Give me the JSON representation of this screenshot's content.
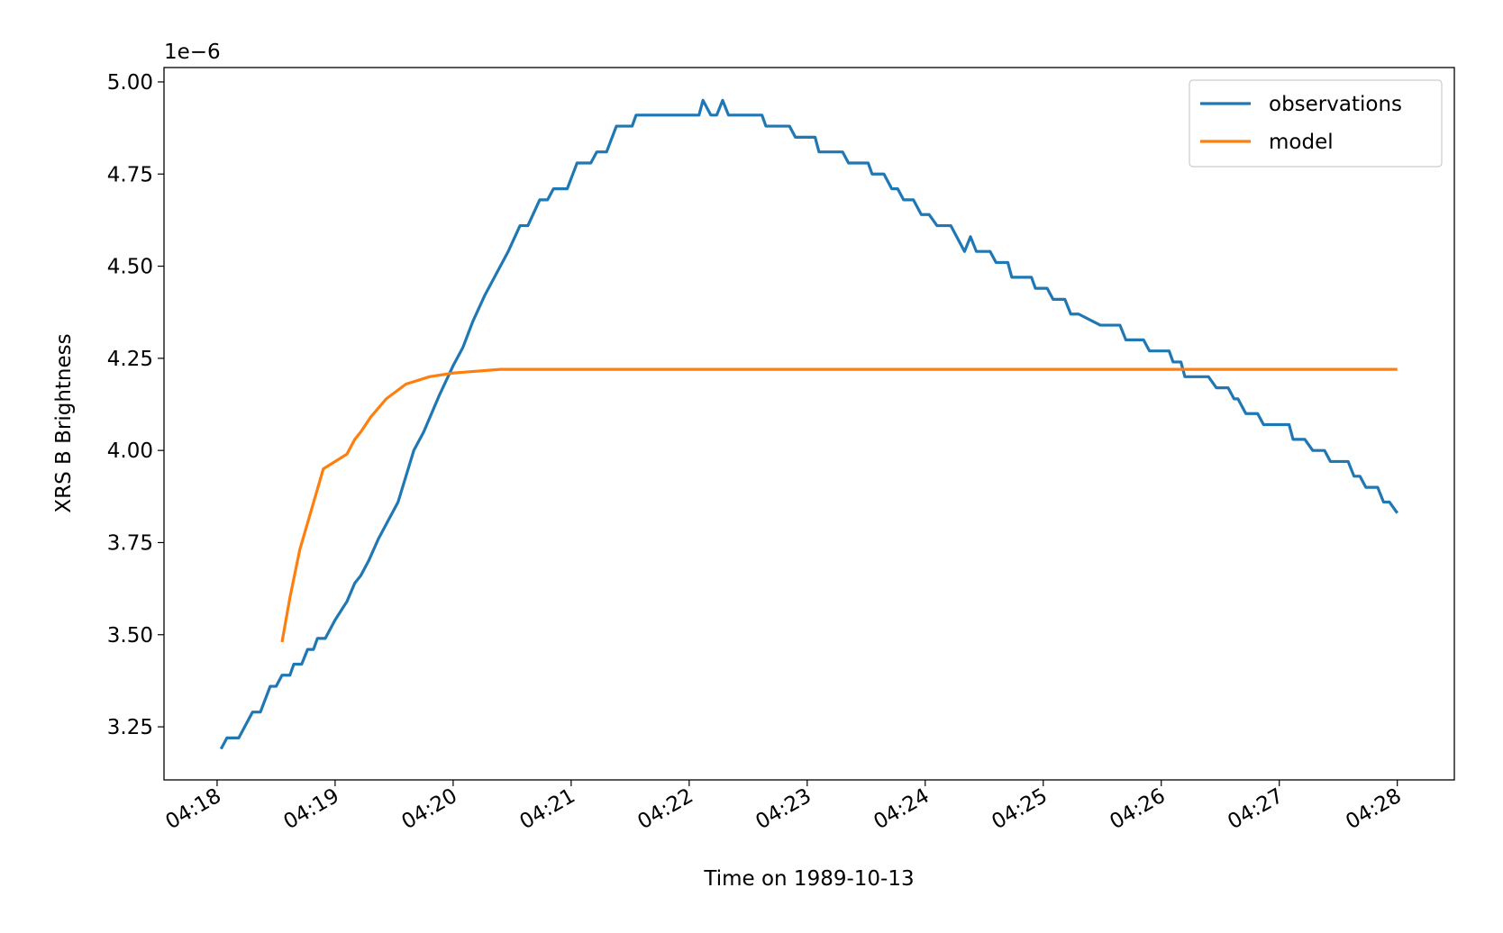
{
  "chart_data": {
    "type": "line",
    "xlabel": "Time on 1989-10-13",
    "ylabel": "XRS B Brightness",
    "y_offset_label": "1e−6",
    "xlim": [
      "04:17:33",
      "04:28:29"
    ],
    "xticks": [
      "04:18",
      "04:19",
      "04:20",
      "04:21",
      "04:22",
      "04:23",
      "04:24",
      "04:25",
      "04:26",
      "04:27",
      "04:28"
    ],
    "ylim": [
      3.106,
      5.039
    ],
    "yticks": [
      3.25,
      {
        "value": 3.5,
        "label": "3.50"
      },
      3.75,
      {
        "value": 4,
        "label": "4.00"
      },
      4.25,
      {
        "value": 4.5,
        "label": "4.50"
      },
      4.75,
      {
        "value": 5,
        "label": "5.00"
      }
    ],
    "legend_loc": "upper right",
    "series": [
      {
        "name": "observations",
        "color": "#1f77b4",
        "x": [
          "04:18:02",
          "04:18:05",
          "04:18:11",
          "04:18:18",
          "04:18:22",
          "04:18:27",
          "04:18:30",
          "04:18:33",
          "04:18:37",
          "04:18:39",
          "04:18:43",
          "04:18:46",
          "04:18:49",
          "04:18:51",
          "04:18:55",
          "04:19:00",
          "04:19:06",
          "04:19:10",
          "04:19:13",
          "04:19:17",
          "04:19:22",
          "04:19:26",
          "04:19:32",
          "04:19:36",
          "04:19:40",
          "04:19:45",
          "04:19:49",
          "04:19:53",
          "04:20:00",
          "04:20:05",
          "04:20:10",
          "04:20:16",
          "04:20:22",
          "04:20:28",
          "04:20:34",
          "04:20:38",
          "04:20:44",
          "04:20:48",
          "04:20:51",
          "04:20:58",
          "04:21:03",
          "04:21:10",
          "04:21:13",
          "04:21:18",
          "04:21:23",
          "04:21:31",
          "04:21:33",
          "04:22:05",
          "04:22:07",
          "04:22:11",
          "04:22:14",
          "04:22:17",
          "04:22:20",
          "04:22:37",
          "04:22:39",
          "04:22:51",
          "04:22:54",
          "04:23:04",
          "04:23:06",
          "04:23:18",
          "04:23:21",
          "04:23:31",
          "04:23:33",
          "04:23:39",
          "04:23:43",
          "04:23:46",
          "04:23:49",
          "04:23:54",
          "04:23:58",
          "04:24:02",
          "04:24:06",
          "04:24:13",
          "04:24:20",
          "04:24:23",
          "04:24:26",
          "04:24:33",
          "04:24:36",
          "04:24:42",
          "04:24:44",
          "04:24:54",
          "04:24:56",
          "04:25:02",
          "04:25:05",
          "04:25:11",
          "04:25:14",
          "04:25:18",
          "04:25:29",
          "04:25:39",
          "04:25:42",
          "04:25:51",
          "04:25:54",
          "04:26:04",
          "04:26:06",
          "04:26:10",
          "04:26:12",
          "04:26:24",
          "04:26:28",
          "04:26:34",
          "04:26:37",
          "04:26:39",
          "04:26:43",
          "04:26:49",
          "04:26:52",
          "04:27:05",
          "04:27:07",
          "04:27:13",
          "04:27:17",
          "04:27:23",
          "04:27:26",
          "04:27:35",
          "04:27:38",
          "04:27:41",
          "04:27:44",
          "04:27:50",
          "04:27:53",
          "04:27:56",
          "04:28:00"
        ],
        "values": [
          3.19,
          3.22,
          3.22,
          3.29,
          3.29,
          3.36,
          3.36,
          3.39,
          3.39,
          3.42,
          3.42,
          3.46,
          3.46,
          3.49,
          3.49,
          3.54,
          3.59,
          3.64,
          3.66,
          3.7,
          3.76,
          3.8,
          3.86,
          3.93,
          4.0,
          4.05,
          4.1,
          4.15,
          4.23,
          4.28,
          4.35,
          4.42,
          4.48,
          4.54,
          4.61,
          4.61,
          4.68,
          4.68,
          4.71,
          4.71,
          4.78,
          4.78,
          4.81,
          4.81,
          4.88,
          4.88,
          4.91,
          4.91,
          4.95,
          4.91,
          4.91,
          4.95,
          4.91,
          4.91,
          4.88,
          4.88,
          4.85,
          4.85,
          4.81,
          4.81,
          4.78,
          4.78,
          4.75,
          4.75,
          4.71,
          4.71,
          4.68,
          4.68,
          4.64,
          4.64,
          4.61,
          4.61,
          4.54,
          4.58,
          4.54,
          4.54,
          4.51,
          4.51,
          4.47,
          4.47,
          4.44,
          4.44,
          4.41,
          4.41,
          4.37,
          4.37,
          4.34,
          4.34,
          4.3,
          4.3,
          4.27,
          4.27,
          4.24,
          4.24,
          4.2,
          4.2,
          4.17,
          4.17,
          4.14,
          4.14,
          4.1,
          4.1,
          4.07,
          4.07,
          4.03,
          4.03,
          4.0,
          4.0,
          3.97,
          3.97,
          3.93,
          3.93,
          3.9,
          3.9,
          3.86,
          3.86,
          3.83
        ]
      },
      {
        "name": "model",
        "color": "#ff7f0e",
        "x": [
          "04:18:33",
          "04:18:37",
          "04:18:42",
          "04:18:48",
          "04:18:54",
          "04:19:06",
          "04:19:10",
          "04:19:13",
          "04:19:18",
          "04:19:26",
          "04:19:36",
          "04:19:48",
          "04:20:00",
          "04:20:24",
          "04:21:04",
          "04:28:00"
        ],
        "values": [
          3.48,
          3.6,
          3.73,
          3.84,
          3.95,
          3.99,
          4.03,
          4.05,
          4.09,
          4.14,
          4.18,
          4.2,
          4.21,
          4.22,
          4.22,
          4.22
        ]
      }
    ]
  }
}
